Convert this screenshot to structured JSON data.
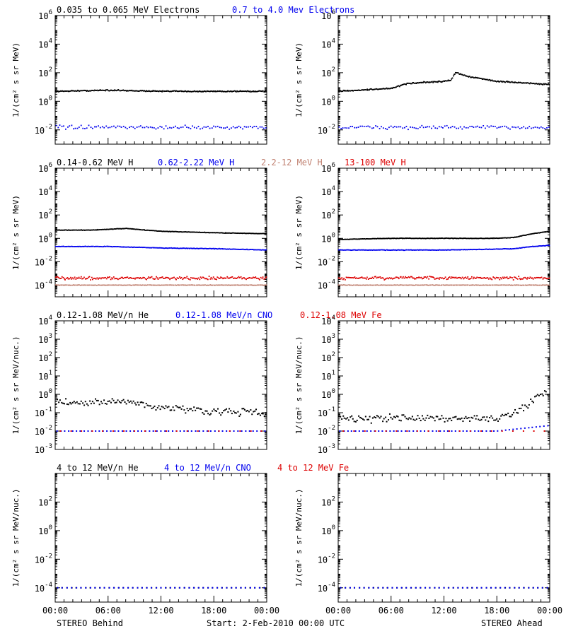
{
  "colors": {
    "black": "#000000",
    "blue": "#0000ee",
    "tan": "#c08070",
    "red": "#dd0000"
  },
  "footer": {
    "left": "STEREO Behind",
    "center": "Start:  2-Feb-2010 00:00 UTC",
    "right": "STEREO Ahead"
  },
  "xaxis": {
    "ticks": [
      "00:00",
      "06:00",
      "12:00",
      "18:00",
      "00:00"
    ]
  },
  "rows": [
    {
      "ylabel": "1/(cm² s sr MeV)",
      "ylog": [
        -3,
        6
      ],
      "yticks": [
        {
          "exp": "-2"
        },
        {
          "exp": "0"
        },
        {
          "exp": "2"
        },
        {
          "exp": "4"
        },
        {
          "exp": "6"
        }
      ],
      "legend": [
        {
          "text": "0.035 to 0.065 MeV Electrons",
          "color": "#000000"
        },
        {
          "text": "0.7 to 4.0 Mev Electrons",
          "color": "#0000ee"
        }
      ]
    },
    {
      "ylabel": "1/(cm² s sr MeV)",
      "ylog": [
        -5,
        6
      ],
      "yticks": [
        {
          "exp": "-4"
        },
        {
          "exp": "-2"
        },
        {
          "exp": "0"
        },
        {
          "exp": "2"
        },
        {
          "exp": "4"
        },
        {
          "exp": "6"
        }
      ],
      "legend": [
        {
          "text": "0.14-0.62 MeV H",
          "color": "#000000"
        },
        {
          "text": "0.62-2.22 MeV H",
          "color": "#0000ee"
        },
        {
          "text": "2.2-12 MeV H",
          "color": "#c08070"
        },
        {
          "text": "13-100 MeV H",
          "color": "#dd0000"
        }
      ]
    },
    {
      "ylabel": "1/(cm² s sr MeV/nuc.)",
      "ylog": [
        -3,
        4
      ],
      "yticks": [
        {
          "exp": "-3"
        },
        {
          "exp": "-2"
        },
        {
          "exp": "-1"
        },
        {
          "exp": "0"
        },
        {
          "exp": "1"
        },
        {
          "exp": "2"
        },
        {
          "exp": "3"
        },
        {
          "exp": "4"
        }
      ],
      "legend": [
        {
          "text": "0.12-1.08 MeV/n He",
          "color": "#000000"
        },
        {
          "text": "0.12-1.08 MeV/n CNO",
          "color": "#0000ee"
        },
        {
          "text": "0.12-1.08 MeV Fe",
          "color": "#dd0000"
        }
      ]
    },
    {
      "ylabel": "1/(cm² s sr MeV/nuc.)",
      "ylog": [
        -5,
        4
      ],
      "yticks": [
        {
          "exp": "-4"
        },
        {
          "exp": "-2"
        },
        {
          "exp": "0"
        },
        {
          "exp": "2"
        }
      ],
      "legend": [
        {
          "text": "4 to 12 MeV/n He",
          "color": "#000000"
        },
        {
          "text": "4 to 12 MeV/n CNO",
          "color": "#0000ee"
        },
        {
          "text": "4 to 12 MeV Fe",
          "color": "#dd0000"
        }
      ]
    }
  ],
  "chart_data": [
    {
      "type": "scatter",
      "spacecraft": "STEREO Behind",
      "channel": "Electrons",
      "ylog": true,
      "ylim_log10": [
        -3,
        6
      ],
      "xlim_hours": [
        0,
        24
      ],
      "series": [
        {
          "name": "0.035 to 0.065 MeV Electrons",
          "color": "#000000",
          "x": [
            0,
            6,
            12,
            18,
            24
          ],
          "y": [
            5,
            6,
            5,
            5,
            5
          ]
        },
        {
          "name": "0.7 to 4.0 Mev Electrons",
          "color": "#0000ee",
          "x": [
            0,
            6,
            12,
            18,
            24
          ],
          "y": [
            0.015,
            0.015,
            0.015,
            0.015,
            0.015
          ]
        }
      ]
    },
    {
      "type": "scatter",
      "spacecraft": "STEREO Ahead",
      "channel": "Electrons",
      "ylog": true,
      "ylim_log10": [
        -3,
        6
      ],
      "xlim_hours": [
        0,
        24
      ],
      "series": [
        {
          "name": "0.035 to 0.065 MeV Electrons",
          "color": "#000000",
          "x": [
            0,
            6,
            8,
            12,
            12.8,
            13.3,
            15,
            18,
            24
          ],
          "y": [
            5,
            8,
            18,
            25,
            30,
            100,
            50,
            25,
            15
          ]
        },
        {
          "name": "0.7 to 4.0 Mev Electrons",
          "color": "#0000ee",
          "x": [
            0,
            6,
            12,
            18,
            24
          ],
          "y": [
            0.015,
            0.015,
            0.015,
            0.015,
            0.015
          ]
        }
      ]
    },
    {
      "type": "scatter",
      "spacecraft": "STEREO Behind",
      "channel": "H",
      "ylog": true,
      "ylim_log10": [
        -5,
        6
      ],
      "xlim_hours": [
        0,
        24
      ],
      "series": [
        {
          "name": "0.14-0.62 MeV H",
          "color": "#000000",
          "x": [
            0,
            4,
            8,
            12,
            18,
            24
          ],
          "y": [
            5,
            5,
            7,
            4,
            3,
            2.5
          ]
        },
        {
          "name": "0.62-2.22 MeV H",
          "color": "#0000ee",
          "x": [
            0,
            6,
            12,
            18,
            24
          ],
          "y": [
            0.2,
            0.2,
            0.15,
            0.13,
            0.1
          ]
        },
        {
          "name": "2.2-12 MeV H",
          "color": "#c08070",
          "x": [
            0,
            6,
            12,
            18,
            24
          ],
          "y": [
            0.0001,
            0.0001,
            0.0001,
            0.0001,
            0.0001
          ]
        },
        {
          "name": "13-100 MeV H",
          "color": "#dd0000",
          "x": [
            0,
            6,
            12,
            18,
            24
          ],
          "y": [
            0.0004,
            0.0004,
            0.0004,
            0.0004,
            0.0004
          ]
        }
      ]
    },
    {
      "type": "scatter",
      "spacecraft": "STEREO Ahead",
      "channel": "H",
      "ylog": true,
      "ylim_log10": [
        -5,
        6
      ],
      "xlim_hours": [
        0,
        24
      ],
      "series": [
        {
          "name": "0.14-0.62 MeV H",
          "color": "#000000",
          "x": [
            0,
            6,
            12,
            18,
            20,
            22,
            24
          ],
          "y": [
            0.8,
            1,
            1,
            1,
            1.2,
            2.5,
            4
          ]
        },
        {
          "name": "0.62-2.22 MeV H",
          "color": "#0000ee",
          "x": [
            0,
            6,
            12,
            18,
            20,
            22,
            24
          ],
          "y": [
            0.1,
            0.1,
            0.1,
            0.12,
            0.13,
            0.2,
            0.25
          ]
        },
        {
          "name": "2.2-12 MeV H",
          "color": "#c08070",
          "x": [
            0,
            6,
            12,
            18,
            24
          ],
          "y": [
            0.0001,
            0.0001,
            0.0001,
            0.0001,
            0.0001
          ]
        },
        {
          "name": "13-100 MeV H",
          "color": "#dd0000",
          "x": [
            0,
            6,
            12,
            18,
            24
          ],
          "y": [
            0.0004,
            0.0004,
            0.0004,
            0.0004,
            0.0004
          ]
        }
      ]
    },
    {
      "type": "scatter",
      "spacecraft": "STEREO Behind",
      "channel": "He/CNO/Fe low",
      "ylog": true,
      "ylim_log10": [
        -3,
        4
      ],
      "xlim_hours": [
        0,
        24
      ],
      "series": [
        {
          "name": "0.12-1.08 MeV/n He",
          "color": "#000000",
          "x": [
            0,
            4,
            8,
            12,
            18,
            24
          ],
          "y": [
            0.4,
            0.35,
            0.4,
            0.2,
            0.12,
            0.1
          ]
        },
        {
          "name": "0.12-1.08 MeV/n CNO",
          "color": "#0000ee",
          "x": [
            0,
            6,
            12,
            18,
            24
          ],
          "y": [
            0.01,
            0.01,
            0.01,
            0.01,
            0.01
          ]
        },
        {
          "name": "0.12-1.08 MeV Fe",
          "color": "#dd0000",
          "x": [
            0,
            6,
            12,
            18,
            24
          ],
          "y": [
            0.01,
            0.01,
            0.01,
            0.01,
            0.01
          ]
        }
      ]
    },
    {
      "type": "scatter",
      "spacecraft": "STEREO Ahead",
      "channel": "He/CNO/Fe low",
      "ylog": true,
      "ylim_log10": [
        -3,
        4
      ],
      "xlim_hours": [
        0,
        24
      ],
      "series": [
        {
          "name": "0.12-1.08 MeV/n He",
          "color": "#000000",
          "x": [
            0,
            6,
            12,
            18,
            20,
            22,
            23,
            24
          ],
          "y": [
            0.05,
            0.05,
            0.05,
            0.05,
            0.1,
            0.4,
            1.2,
            1.5
          ]
        },
        {
          "name": "0.12-1.08 MeV/n CNO",
          "color": "#0000ee",
          "x": [
            0,
            6,
            12,
            18,
            24
          ],
          "y": [
            0.01,
            0.01,
            0.01,
            0.01,
            0.02
          ]
        },
        {
          "name": "0.12-1.08 MeV Fe",
          "color": "#dd0000",
          "x": [
            0,
            6,
            12,
            18,
            24
          ],
          "y": [
            0.01,
            0.01,
            0.01,
            0.01,
            0.01
          ]
        }
      ]
    },
    {
      "type": "scatter",
      "spacecraft": "STEREO Behind",
      "channel": "He/CNO/Fe high",
      "ylog": true,
      "ylim_log10": [
        -5,
        4
      ],
      "xlim_hours": [
        0,
        24
      ],
      "series": [
        {
          "name": "4 to 12 MeV/n He",
          "color": "#000000",
          "x": [
            0,
            6,
            12,
            18,
            24
          ],
          "y": [
            0.0001,
            0.0001,
            0.0001,
            0.0001,
            0.0001
          ]
        },
        {
          "name": "4 to 12 MeV/n CNO",
          "color": "#0000ee",
          "x": [
            0,
            6,
            12,
            18,
            24
          ],
          "y": [
            0.0001,
            0.0001,
            0.0001,
            0.0001,
            0.0001
          ]
        },
        {
          "name": "4 to 12 MeV Fe",
          "color": "#dd0000",
          "x": [],
          "y": []
        }
      ]
    },
    {
      "type": "scatter",
      "spacecraft": "STEREO Ahead",
      "channel": "He/CNO/Fe high",
      "ylog": true,
      "ylim_log10": [
        -5,
        4
      ],
      "xlim_hours": [
        0,
        24
      ],
      "series": [
        {
          "name": "4 to 12 MeV/n He",
          "color": "#000000",
          "x": [
            0,
            6,
            12,
            18,
            24
          ],
          "y": [
            0.0001,
            0.0001,
            0.0001,
            0.0001,
            0.0001
          ]
        },
        {
          "name": "4 to 12 MeV/n CNO",
          "color": "#0000ee",
          "x": [
            0,
            6,
            12,
            18,
            24
          ],
          "y": [
            0.0001,
            0.0001,
            0.0001,
            0.0001,
            0.0001
          ]
        },
        {
          "name": "4 to 12 MeV Fe",
          "color": "#dd0000",
          "x": [],
          "y": []
        }
      ]
    }
  ]
}
